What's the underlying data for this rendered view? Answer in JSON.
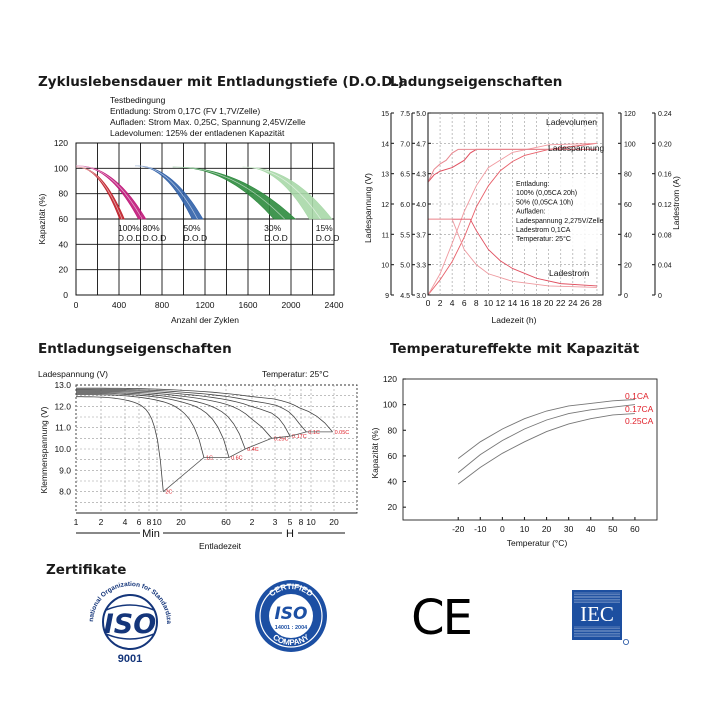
{
  "chart_data": [
    {
      "type": "area",
      "title": "Zykluslebensdauer mit Entladungstiefe (D.O.D.)",
      "test_conditions": [
        "Testbedingung",
        "Entladung: Strom 0,17C (FV 1,7V/Zelle)",
        "Aufladen: Strom Max. 0,25C, Spannung 2,45V/Zelle",
        "Ladevolumen: 125% der entladenen Kapazität"
      ],
      "xlabel": "Anzahl der Zyklen",
      "ylabel": "Kapazität (%)",
      "xticks": [
        "0",
        "400",
        "800",
        "1200",
        "1600",
        "2000",
        "2400"
      ],
      "yticks": [
        "0",
        "20",
        "40",
        "60",
        "80",
        "100",
        "120"
      ],
      "xlim": [
        0,
        2400
      ],
      "ylim": [
        0,
        120
      ],
      "series": [
        {
          "name": "100% D.O.D",
          "color": "#c0202a",
          "start": [
            0,
            101
          ],
          "end": [
            450,
            60
          ],
          "band": 45
        },
        {
          "name": "80% D.O.D",
          "color": "#c0187a",
          "start": [
            0,
            102
          ],
          "end": [
            650,
            60
          ],
          "band": 70
        },
        {
          "name": "50% D.O.D",
          "color": "#3060a8",
          "start": [
            550,
            102
          ],
          "end": [
            1180,
            60
          ],
          "band": 100
        },
        {
          "name": "30% D.O.D",
          "color": "#2e8b3e",
          "start": [
            900,
            101
          ],
          "end": [
            2040,
            60
          ],
          "band": 200
        },
        {
          "name": "15% D.O.D",
          "color": "#a8d8a8",
          "start": [
            1550,
            101
          ],
          "end": [
            2380,
            60
          ],
          "band": 210
        }
      ],
      "labels": [
        {
          "pct": "100%",
          "dod": "D.O.D",
          "x": 390
        },
        {
          "pct": "80%",
          "dod": "D.O.D",
          "x": 620
        },
        {
          "pct": "50%",
          "dod": "D.O.D",
          "x": 1000
        },
        {
          "pct": "30%",
          "dod": "D.O.D",
          "x": 1750
        },
        {
          "pct": "15%",
          "dod": "D.O.D",
          "x": 2230
        }
      ]
    },
    {
      "type": "line",
      "title": "Ladungseigenschaften",
      "xlabel": "Ladezeit (h)",
      "ylabel_left": "Ladespannung (V)",
      "ylabel_right": "Ladestrom (A)",
      "xticks": [
        "0",
        "2",
        "4",
        "6",
        "8",
        "10",
        "12",
        "14",
        "16",
        "18",
        "20",
        "22",
        "24",
        "26",
        "28"
      ],
      "xlim": [
        0,
        29
      ],
      "left_axis_1": [
        "9",
        "10",
        "11",
        "12",
        "13",
        "14",
        "15"
      ],
      "left_axis_2": [
        "4.5",
        "5.0",
        "5.5",
        "6.0",
        "6.5",
        "7.0",
        "7.5"
      ],
      "left_axis_3": [
        "3.0",
        "3.3",
        "3.7",
        "4.0",
        "4.3",
        "4.7",
        "5.0"
      ],
      "right_axis_1": [
        "0",
        "20",
        "40",
        "60",
        "80",
        "100",
        "120"
      ],
      "right_axis_2": [
        "0",
        "0.04",
        "0.08",
        "0.12",
        "0.16",
        "0.20",
        "0.24"
      ],
      "curve_labels": [
        "Ladevolumen",
        "Ladespannung",
        "Ladestrom"
      ],
      "legend": [
        "Entladung:",
        "100% (0,05CA 20h)",
        "50% (0,05CA 10h)",
        "Aufladen:",
        "Ladespannung 2,275V/Zelle",
        "Ladestrom 0,1CA",
        "Temperatur: 25°C"
      ],
      "series": [
        {
          "name": "Ladevolumen 100%",
          "x": [
            0,
            2,
            4,
            6,
            8,
            10,
            12,
            14,
            16,
            20,
            24,
            28
          ],
          "y": [
            0,
            10,
            22,
            38,
            58,
            72,
            82,
            88,
            92,
            96,
            98,
            100
          ]
        },
        {
          "name": "Ladevolumen 50%",
          "x": [
            0,
            2,
            4,
            6,
            8,
            10,
            14,
            20,
            28
          ],
          "y": [
            0,
            14,
            34,
            55,
            72,
            84,
            94,
            99,
            100
          ]
        },
        {
          "name": "Ladespannung 100%",
          "x": [
            0,
            1,
            2,
            4,
            6,
            7,
            8,
            28
          ],
          "y": [
            0.62,
            0.66,
            0.68,
            0.7,
            0.74,
            0.78,
            0.8,
            0.8
          ]
        },
        {
          "name": "Ladespannung 50%",
          "x": [
            0,
            1,
            2,
            3,
            4,
            5,
            28
          ],
          "y": [
            0.62,
            0.69,
            0.72,
            0.74,
            0.78,
            0.8,
            0.8
          ]
        },
        {
          "name": "Ladestrom 100%",
          "x": [
            0,
            7,
            8,
            10,
            12,
            14,
            18,
            22,
            28
          ],
          "y": [
            0.1,
            0.1,
            0.085,
            0.06,
            0.045,
            0.035,
            0.022,
            0.015,
            0.012
          ]
        },
        {
          "name": "Ladestrom 50%",
          "x": [
            0,
            4,
            5,
            6,
            8,
            10,
            14,
            20,
            28
          ],
          "y": [
            0.1,
            0.1,
            0.08,
            0.06,
            0.04,
            0.028,
            0.018,
            0.012,
            0.01
          ]
        }
      ]
    },
    {
      "type": "line",
      "title": "Entladungseigenschaften",
      "ylabel_top": "Ladespannung (V)",
      "ylabel": "Klemmenspannung (V)",
      "temperature": "Temperatur: 25°C",
      "xlabel": "Entladezeit",
      "xticks": [
        "1",
        "2",
        "4",
        "6",
        "8",
        "10",
        "20",
        "60",
        "2",
        "3",
        "5",
        "8",
        "10",
        "20"
      ],
      "units": [
        "Min",
        "H"
      ],
      "yticks": [
        "8.0",
        "9.0",
        "10.0",
        "11.0",
        "12.0",
        "13.0"
      ],
      "ylim": [
        7.0,
        13.0
      ],
      "series": [
        {
          "name": "2C",
          "end_minutes": 12,
          "end_v": 8.0
        },
        {
          "name": "1C",
          "end_minutes": 35,
          "end_v": 9.6
        },
        {
          "name": "0.6C",
          "end_minutes": 65,
          "end_v": 9.6
        },
        {
          "name": "0.4C",
          "end_minutes": 100,
          "end_v": 10.0
        },
        {
          "name": "0.25C",
          "end_minutes": 170,
          "end_v": 10.5
        },
        {
          "name": "0.17C",
          "end_minutes": 300,
          "end_v": 10.6
        },
        {
          "name": "0.1C",
          "end_minutes": 540,
          "end_v": 10.8
        },
        {
          "name": "0.05C",
          "end_minutes": 1150,
          "end_v": 10.8
        }
      ]
    },
    {
      "type": "line",
      "title": "Temperatureffekte mit Kapazität",
      "xlabel": "Temperatur (°C)",
      "ylabel": "Kapazität (%)",
      "xticks": [
        "-20",
        "-10",
        "0",
        "10",
        "20",
        "30",
        "40",
        "50",
        "60"
      ],
      "yticks": [
        "20",
        "40",
        "60",
        "80",
        "100",
        "120"
      ],
      "xlim": [
        -45,
        70
      ],
      "ylim": [
        10,
        120
      ],
      "series": [
        {
          "name": "0.1CA",
          "x": [
            -20,
            -10,
            0,
            10,
            20,
            30,
            40,
            50,
            60
          ],
          "y": [
            58,
            71,
            81,
            89,
            95,
            99,
            101,
            103,
            104
          ]
        },
        {
          "name": "0.17CA",
          "x": [
            -20,
            -10,
            0,
            10,
            20,
            30,
            40,
            50,
            60
          ],
          "y": [
            47,
            61,
            72,
            81,
            88,
            93,
            96,
            98,
            100
          ]
        },
        {
          "name": "0.25CA",
          "x": [
            -20,
            -10,
            0,
            10,
            20,
            30,
            40,
            50,
            60
          ],
          "y": [
            38,
            51,
            62,
            71,
            79,
            85,
            89,
            92,
            93
          ]
        }
      ]
    }
  ],
  "certificates": {
    "title": "Zertifikate",
    "iso9001_ring": "International Organization for Standardization",
    "iso9001_mark": "ISO",
    "iso9001_number": "9001",
    "iso14001_top": "CERTIFIED",
    "iso14001_mark": "ISO",
    "iso14001_number": "14001 : 2004",
    "iso14001_bottom": "COMPANY",
    "ce": "CE",
    "iec": "IEC",
    "iec_color": "#1d4fa0"
  }
}
